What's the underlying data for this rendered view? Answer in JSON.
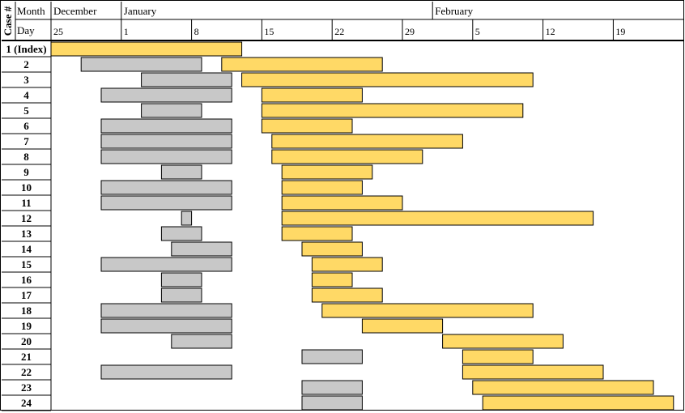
{
  "chart_data": {
    "type": "gantt",
    "title": "",
    "headers": {
      "case": "Case #",
      "month_row": "Month",
      "day_row": "Day"
    },
    "months": [
      {
        "label": "December",
        "start_day": 25
      },
      {
        "label": "January",
        "start_day": 32
      },
      {
        "label": "February",
        "start_day": 63
      }
    ],
    "day_ticks": [
      {
        "day": 25,
        "label": "25"
      },
      {
        "day": 32,
        "label": "1"
      },
      {
        "day": 39,
        "label": "8"
      },
      {
        "day": 46,
        "label": "15"
      },
      {
        "day": 53,
        "label": "22"
      },
      {
        "day": 60,
        "label": "29"
      },
      {
        "day": 67,
        "label": "5"
      },
      {
        "day": 74,
        "label": "12"
      },
      {
        "day": 81,
        "label": "19"
      }
    ],
    "x_range": [
      25,
      87
    ],
    "day_unit": "days counted from December 1",
    "series": [
      {
        "name": "grey period",
        "color": "#C8C8C8"
      },
      {
        "name": "yellow period",
        "color": "#FFD966"
      }
    ],
    "rows": [
      {
        "case": "1 (Index)",
        "grey": null,
        "yellow": [
          25,
          44
        ]
      },
      {
        "case": "2",
        "grey": [
          28,
          40
        ],
        "yellow": [
          42,
          58
        ]
      },
      {
        "case": "3",
        "grey": [
          34,
          43
        ],
        "yellow": [
          44,
          73
        ]
      },
      {
        "case": "4",
        "grey": [
          30,
          43
        ],
        "yellow": [
          46,
          56
        ]
      },
      {
        "case": "5",
        "grey": [
          34,
          40
        ],
        "yellow": [
          46,
          72
        ]
      },
      {
        "case": "6",
        "grey": [
          30,
          43
        ],
        "yellow": [
          46,
          55
        ]
      },
      {
        "case": "7",
        "grey": [
          30,
          43
        ],
        "yellow": [
          47,
          66
        ]
      },
      {
        "case": "8",
        "grey": [
          30,
          43
        ],
        "yellow": [
          47,
          62
        ]
      },
      {
        "case": "9",
        "grey": [
          36,
          40
        ],
        "yellow": [
          48,
          57
        ]
      },
      {
        "case": "10",
        "grey": [
          30,
          43
        ],
        "yellow": [
          48,
          56
        ]
      },
      {
        "case": "11",
        "grey": [
          30,
          43
        ],
        "yellow": [
          48,
          60
        ]
      },
      {
        "case": "12",
        "grey": [
          38,
          39
        ],
        "yellow": [
          48,
          79
        ]
      },
      {
        "case": "13",
        "grey": [
          36,
          40
        ],
        "yellow": [
          48,
          55
        ]
      },
      {
        "case": "14",
        "grey": [
          37,
          43
        ],
        "yellow": [
          50,
          56
        ]
      },
      {
        "case": "15",
        "grey": [
          30,
          43
        ],
        "yellow": [
          51,
          58
        ]
      },
      {
        "case": "16",
        "grey": [
          36,
          40
        ],
        "yellow": [
          51,
          55
        ]
      },
      {
        "case": "17",
        "grey": [
          36,
          40
        ],
        "yellow": [
          51,
          58
        ]
      },
      {
        "case": "18",
        "grey": [
          30,
          43
        ],
        "yellow": [
          52,
          73
        ]
      },
      {
        "case": "19",
        "grey": [
          30,
          43
        ],
        "yellow": [
          56,
          64
        ]
      },
      {
        "case": "20",
        "grey": [
          37,
          43
        ],
        "yellow": [
          64,
          76
        ]
      },
      {
        "case": "21",
        "grey": [
          50,
          56
        ],
        "yellow": [
          66,
          73
        ]
      },
      {
        "case": "22",
        "grey": [
          30,
          43
        ],
        "yellow": [
          66,
          80
        ]
      },
      {
        "case": "23",
        "grey": [
          50,
          56
        ],
        "yellow": [
          67,
          85
        ]
      },
      {
        "case": "24",
        "grey": [
          50,
          56
        ],
        "yellow": [
          68,
          87
        ]
      }
    ]
  }
}
